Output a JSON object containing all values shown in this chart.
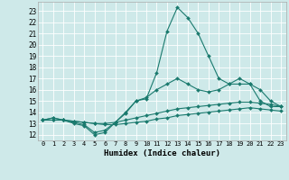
{
  "xlabel": "Humidex (Indice chaleur)",
  "background_color": "#cee9e9",
  "grid_color": "#ffffff",
  "line_color": "#1a7a6e",
  "xlim": [
    -0.5,
    23.5
  ],
  "ylim": [
    11.5,
    23.8
  ],
  "xticks": [
    0,
    1,
    2,
    3,
    4,
    5,
    6,
    7,
    8,
    9,
    10,
    11,
    12,
    13,
    14,
    15,
    16,
    17,
    18,
    19,
    20,
    21,
    22,
    23
  ],
  "yticks": [
    12,
    13,
    14,
    15,
    16,
    17,
    18,
    19,
    20,
    21,
    22,
    23
  ],
  "line1_x": [
    0,
    1,
    2,
    3,
    4,
    5,
    6,
    7,
    8,
    9,
    10,
    11,
    12,
    13,
    14,
    15,
    16,
    17,
    18,
    19,
    20,
    21,
    22,
    23
  ],
  "line1_y": [
    13.3,
    13.5,
    13.3,
    13.0,
    12.8,
    12.0,
    12.2,
    13.1,
    13.9,
    15.0,
    15.2,
    17.5,
    21.2,
    23.3,
    22.4,
    21.0,
    19.0,
    17.0,
    16.5,
    17.0,
    16.5,
    15.0,
    14.5,
    14.5
  ],
  "line2_x": [
    0,
    1,
    2,
    3,
    4,
    5,
    6,
    7,
    8,
    9,
    10,
    11,
    12,
    13,
    14,
    15,
    16,
    17,
    18,
    19,
    20,
    21,
    22,
    23
  ],
  "line2_y": [
    13.3,
    13.5,
    13.3,
    13.1,
    12.9,
    12.2,
    12.4,
    13.1,
    14.0,
    15.0,
    15.3,
    16.0,
    16.5,
    17.0,
    16.5,
    16.0,
    15.8,
    16.0,
    16.5,
    16.5,
    16.5,
    16.0,
    15.0,
    14.5
  ],
  "line3_x": [
    0,
    1,
    2,
    3,
    4,
    5,
    6,
    7,
    8,
    9,
    10,
    11,
    12,
    13,
    14,
    15,
    16,
    17,
    18,
    19,
    20,
    21,
    22,
    23
  ],
  "line3_y": [
    13.3,
    13.3,
    13.3,
    13.2,
    13.1,
    13.0,
    13.0,
    13.1,
    13.3,
    13.5,
    13.7,
    13.9,
    14.1,
    14.3,
    14.4,
    14.5,
    14.6,
    14.7,
    14.8,
    14.9,
    14.9,
    14.8,
    14.7,
    14.5
  ],
  "line4_x": [
    0,
    1,
    2,
    3,
    4,
    5,
    6,
    7,
    8,
    9,
    10,
    11,
    12,
    13,
    14,
    15,
    16,
    17,
    18,
    19,
    20,
    21,
    22,
    23
  ],
  "line4_y": [
    13.3,
    13.3,
    13.3,
    13.2,
    13.1,
    13.0,
    12.9,
    12.9,
    13.0,
    13.1,
    13.2,
    13.4,
    13.5,
    13.7,
    13.8,
    13.9,
    14.0,
    14.1,
    14.2,
    14.3,
    14.4,
    14.3,
    14.2,
    14.1
  ],
  "spine_color": "#aaaaaa",
  "xlabel_fontsize": 6.5,
  "tick_fontsize": 5.5,
  "xtick_fontsize": 5.0,
  "linewidth": 0.8,
  "markersize": 2.0
}
